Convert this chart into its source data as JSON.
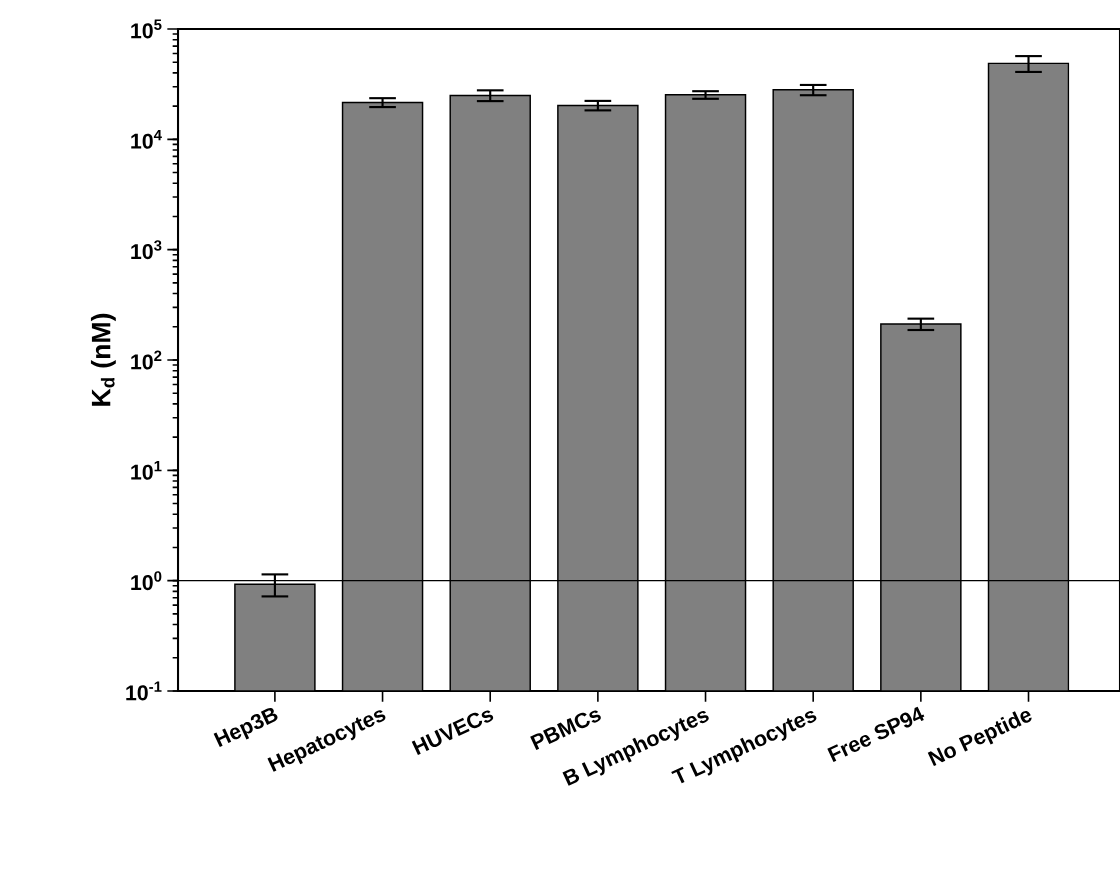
{
  "chart_data": {
    "type": "bar",
    "ylabel": "K$_{d}$ (nM)",
    "categories": [
      "Hep3B",
      "Hepatocytes",
      "HUVECs",
      "PBMCs",
      "B Lymphocytes",
      "T Lymphocytes",
      "Free SP94",
      "No Peptide"
    ],
    "values": [
      0.93,
      21600,
      25000,
      20300,
      25300,
      28100,
      212,
      48800
    ],
    "errors": [
      0.21,
      2000,
      2800,
      2000,
      2000,
      3000,
      25,
      8000
    ],
    "color": "#808080",
    "log": true,
    "ylim": [
      0.1,
      100000
    ],
    "yticks": [
      {
        "value": 0.1,
        "label": "10$^{-1}$"
      },
      {
        "value": 1,
        "label": "10$^{0}$"
      },
      {
        "value": 10,
        "label": "10$^{1}$"
      },
      {
        "value": 100,
        "label": "10$^{2}$"
      },
      {
        "value": 1000,
        "label": "10$^{3}$"
      },
      {
        "value": 10000,
        "label": "10$^{4}$"
      },
      {
        "value": 100000,
        "label": "10$^{5}$"
      }
    ],
    "ref_lines": [
      {
        "axis": "y",
        "value": 1,
        "color": "#000000"
      }
    ]
  }
}
